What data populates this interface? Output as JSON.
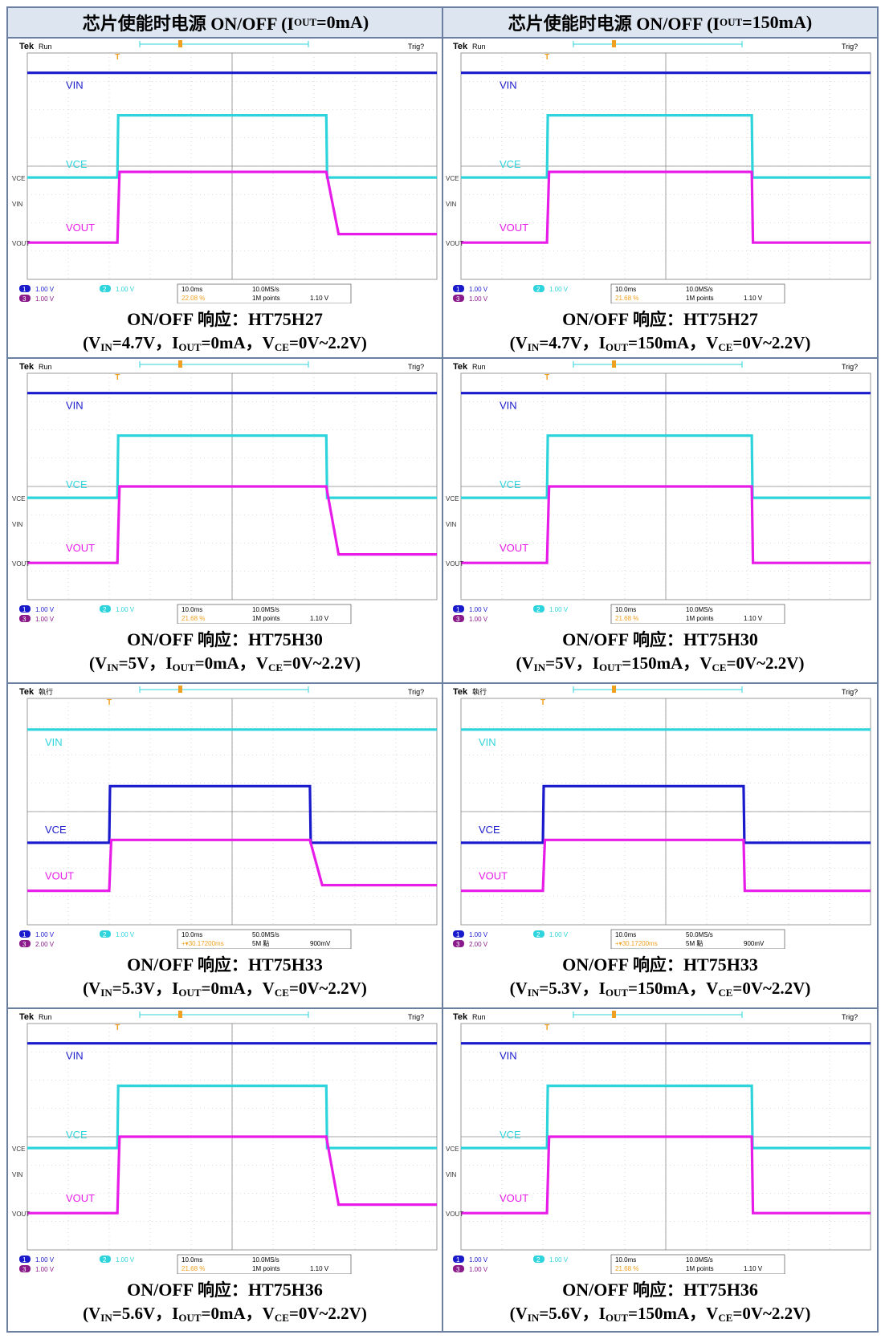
{
  "headers": [
    {
      "pre": "芯片使能时电源 ON/OFF (I",
      "sub": "OUT",
      "post": "=0mA)"
    },
    {
      "pre": "芯片使能时电源 ON/OFF (I",
      "sub": "OUT",
      "post": "=150mA)"
    }
  ],
  "colors": {
    "vin_blue": "#1a1acd",
    "vce_cyan": "#2ed4dc",
    "vout_magenta": "#e81ce8",
    "frame": "#6b7fa0",
    "header_bg": "#dde5f1"
  },
  "panels": [
    {
      "id": "h27-0",
      "title_prefix": "ON/OFF ",
      "title_cn": "响应：",
      "title_part": "HT75H27",
      "vin": "4.7V",
      "iout": "0mA",
      "vce": "0V~2.2V",
      "run_label": "Run",
      "trig_label": "Trig?",
      "ch1": "1.00 V",
      "ch2": "1.00 V",
      "ch3": "1.00 V",
      "timebase": "10.0ms",
      "rate": "10.0MS/s",
      "points": "1M points",
      "trigpos": "22.08 %",
      "triglevel": "1.10 V"
    },
    {
      "id": "h27-150",
      "title_prefix": "ON/OFF ",
      "title_cn": "响应：",
      "title_part": "HT75H27",
      "vin": "4.7V",
      "iout": "150mA",
      "vce": "0V~2.2V",
      "run_label": "Run",
      "trig_label": "Trig?",
      "ch1": "1.00 V",
      "ch2": "1.00 V",
      "ch3": "1.00 V",
      "timebase": "10.0ms",
      "rate": "10.0MS/s",
      "points": "1M points",
      "trigpos": "21.68 %",
      "triglevel": "1.10 V"
    },
    {
      "id": "h30-0",
      "title_prefix": "ON/OFF ",
      "title_cn": "响应：",
      "title_part": "HT75H30",
      "vin": "5V",
      "iout": "0mA",
      "vce": "0V~2.2V",
      "run_label": "Run",
      "trig_label": "Trig?",
      "ch1": "1.00 V",
      "ch2": "1.00 V",
      "ch3": "1.00 V",
      "timebase": "10.0ms",
      "rate": "10.0MS/s",
      "points": "1M points",
      "trigpos": "21.68 %",
      "triglevel": "1.10 V"
    },
    {
      "id": "h30-150",
      "title_prefix": "ON/OFF ",
      "title_cn": "响应：",
      "title_part": "HT75H30",
      "vin": "5V",
      "iout": "150mA",
      "vce": "0V~2.2V",
      "run_label": "Run",
      "trig_label": "Trig?",
      "ch1": "1.00 V",
      "ch2": "1.00 V",
      "ch3": "1.00 V",
      "timebase": "10.0ms",
      "rate": "10.0MS/s",
      "points": "1M points",
      "trigpos": "21.68 %",
      "triglevel": "1.10 V"
    },
    {
      "id": "h33-0",
      "title_prefix": "ON/OFF ",
      "title_cn": "响应：",
      "title_part": "HT75H33",
      "vin": "5.3V",
      "iout": "0mA",
      "vce": "0V~2.2V",
      "run_label": "執行",
      "trig_label": "Trig?",
      "ch1": "1.00 V",
      "ch2": "1.00 V",
      "ch3": "2.00 V",
      "timebase": "10.0ms",
      "rate": "50.0MS/s",
      "points": "5M 點",
      "trigpos": "+▾30.17200ms",
      "triglevel": "900mV"
    },
    {
      "id": "h33-150",
      "title_prefix": "ON/OFF ",
      "title_cn": "响应：",
      "title_part": "HT75H33",
      "vin": "5.3V",
      "iout": "150mA",
      "vce": "0V~2.2V",
      "run_label": "執行",
      "trig_label": "Trig?",
      "ch1": "1.00 V",
      "ch2": "1.00 V",
      "ch3": "2.00 V",
      "timebase": "10.0ms",
      "rate": "50.0MS/s",
      "points": "5M 點",
      "trigpos": "+▾30.17200ms",
      "triglevel": "900mV"
    },
    {
      "id": "h36-0",
      "title_prefix": "ON/OFF ",
      "title_cn": "响应：",
      "title_part": "HT75H36",
      "vin": "5.6V",
      "iout": "0mA",
      "vce": "0V~2.2V",
      "run_label": "Run",
      "trig_label": "Trig?",
      "ch1": "1.00 V",
      "ch2": "1.00 V",
      "ch3": "1.00 V",
      "timebase": "10.0ms",
      "rate": "10.0MS/s",
      "points": "1M points",
      "trigpos": "21.68 %",
      "triglevel": "1.10 V"
    },
    {
      "id": "h36-150",
      "title_prefix": "ON/OFF ",
      "title_cn": "响应：",
      "title_part": "HT75H36",
      "vin": "5.6V",
      "iout": "150mA",
      "vce": "0V~2.2V",
      "run_label": "Run",
      "trig_label": "Trig?",
      "ch1": "1.00 V",
      "ch2": "1.00 V",
      "ch3": "1.00 V",
      "timebase": "10.0ms",
      "rate": "10.0MS/s",
      "points": "1M points",
      "trigpos": "21.68 %",
      "triglevel": "1.10 V"
    }
  ],
  "chart_data": [
    {
      "type": "line",
      "id": "h27-0",
      "x_unit": "div",
      "x_range": [
        0,
        10
      ],
      "y_unit": "div",
      "y_range": [
        -4,
        4
      ],
      "grid": true,
      "series": [
        {
          "name": "VIN",
          "color": "#1a1acd",
          "points": [
            [
              0,
              3.3
            ],
            [
              10,
              3.3
            ]
          ]
        },
        {
          "name": "VCE",
          "color": "#2ed4dc",
          "points": [
            [
              0,
              -0.4
            ],
            [
              2.2,
              -0.4
            ],
            [
              2.22,
              1.8
            ],
            [
              7.3,
              1.8
            ],
            [
              7.32,
              -0.4
            ],
            [
              10,
              -0.4
            ]
          ]
        },
        {
          "name": "VOUT",
          "color": "#e81ce8",
          "points": [
            [
              0,
              -2.7
            ],
            [
              2.2,
              -2.7
            ],
            [
              2.25,
              -0.2
            ],
            [
              7.3,
              -0.2
            ],
            [
              7.6,
              -2.4
            ],
            [
              10,
              -2.4
            ]
          ]
        }
      ],
      "labels": [
        "VIN",
        "VCE",
        "VOUT"
      ],
      "markers": [
        "VCE",
        "VIN",
        "VOUT"
      ]
    },
    {
      "type": "line",
      "id": "h27-150",
      "x_unit": "div",
      "x_range": [
        0,
        10
      ],
      "y_unit": "div",
      "y_range": [
        -4,
        4
      ],
      "grid": true,
      "series": [
        {
          "name": "VIN",
          "color": "#1a1acd",
          "points": [
            [
              0,
              3.3
            ],
            [
              10,
              3.3
            ]
          ]
        },
        {
          "name": "VCE",
          "color": "#2ed4dc",
          "points": [
            [
              0,
              -0.4
            ],
            [
              2.1,
              -0.4
            ],
            [
              2.12,
              1.8
            ],
            [
              7.1,
              1.8
            ],
            [
              7.12,
              -0.4
            ],
            [
              10,
              -0.4
            ]
          ]
        },
        {
          "name": "VOUT",
          "color": "#e81ce8",
          "points": [
            [
              0,
              -2.7
            ],
            [
              2.1,
              -2.7
            ],
            [
              2.15,
              -0.2
            ],
            [
              7.1,
              -0.2
            ],
            [
              7.13,
              -2.7
            ],
            [
              10,
              -2.7
            ]
          ]
        }
      ],
      "labels": [
        "VIN",
        "VCE",
        "VOUT"
      ],
      "markers": [
        "VCE",
        "VIN",
        "VOUT"
      ]
    },
    {
      "type": "line",
      "id": "h30-0",
      "x_unit": "div",
      "x_range": [
        0,
        10
      ],
      "y_unit": "div",
      "y_range": [
        -4,
        4
      ],
      "grid": true,
      "series": [
        {
          "name": "VIN",
          "color": "#1a1acd",
          "points": [
            [
              0,
              3.3
            ],
            [
              10,
              3.3
            ]
          ]
        },
        {
          "name": "VCE",
          "color": "#2ed4dc",
          "points": [
            [
              0,
              -0.4
            ],
            [
              2.2,
              -0.4
            ],
            [
              2.22,
              1.8
            ],
            [
              7.3,
              1.8
            ],
            [
              7.32,
              -0.4
            ],
            [
              10,
              -0.4
            ]
          ]
        },
        {
          "name": "VOUT",
          "color": "#e81ce8",
          "points": [
            [
              0,
              -2.7
            ],
            [
              2.2,
              -2.7
            ],
            [
              2.25,
              0.0
            ],
            [
              7.3,
              0.0
            ],
            [
              7.6,
              -2.4
            ],
            [
              10,
              -2.4
            ]
          ]
        }
      ],
      "labels": [
        "VIN",
        "VCE",
        "VOUT"
      ],
      "markers": [
        "VCE",
        "VIN",
        "VOUT"
      ]
    },
    {
      "type": "line",
      "id": "h30-150",
      "x_unit": "div",
      "x_range": [
        0,
        10
      ],
      "y_unit": "div",
      "y_range": [
        -4,
        4
      ],
      "grid": true,
      "series": [
        {
          "name": "VIN",
          "color": "#1a1acd",
          "points": [
            [
              0,
              3.3
            ],
            [
              10,
              3.3
            ]
          ]
        },
        {
          "name": "VCE",
          "color": "#2ed4dc",
          "points": [
            [
              0,
              -0.4
            ],
            [
              2.1,
              -0.4
            ],
            [
              2.12,
              1.8
            ],
            [
              7.1,
              1.8
            ],
            [
              7.12,
              -0.4
            ],
            [
              10,
              -0.4
            ]
          ]
        },
        {
          "name": "VOUT",
          "color": "#e81ce8",
          "points": [
            [
              0,
              -2.7
            ],
            [
              2.1,
              -2.7
            ],
            [
              2.15,
              0.0
            ],
            [
              7.1,
              0.0
            ],
            [
              7.13,
              -2.7
            ],
            [
              10,
              -2.7
            ]
          ]
        }
      ],
      "labels": [
        "VIN",
        "VCE",
        "VOUT"
      ],
      "markers": [
        "VCE",
        "VIN",
        "VOUT"
      ]
    },
    {
      "type": "line",
      "id": "h33-0",
      "x_unit": "div",
      "x_range": [
        0,
        10
      ],
      "y_unit": "div",
      "y_range": [
        -4,
        4
      ],
      "grid": true,
      "series": [
        {
          "name": "VIN",
          "color": "#2ed4dc",
          "points": [
            [
              0,
              2.9
            ],
            [
              10,
              2.9
            ]
          ]
        },
        {
          "name": "VCE",
          "color": "#1a1acd",
          "points": [
            [
              0,
              -1.1
            ],
            [
              2.0,
              -1.1
            ],
            [
              2.02,
              0.9
            ],
            [
              6.9,
              0.9
            ],
            [
              6.92,
              -1.1
            ],
            [
              10,
              -1.1
            ]
          ]
        },
        {
          "name": "VOUT",
          "color": "#e81ce8",
          "points": [
            [
              0,
              -2.8
            ],
            [
              2.0,
              -2.8
            ],
            [
              2.05,
              -1.0
            ],
            [
              6.9,
              -1.0
            ],
            [
              7.2,
              -2.6
            ],
            [
              10,
              -2.6
            ]
          ]
        }
      ],
      "labels": [
        "VIN",
        "VCE",
        "VOUT"
      ],
      "markers": [
        "",
        "",
        ""
      ]
    },
    {
      "type": "line",
      "id": "h33-150",
      "x_unit": "div",
      "x_range": [
        0,
        10
      ],
      "y_unit": "div",
      "y_range": [
        -4,
        4
      ],
      "grid": true,
      "series": [
        {
          "name": "VIN",
          "color": "#2ed4dc",
          "points": [
            [
              0,
              2.9
            ],
            [
              10,
              2.9
            ]
          ]
        },
        {
          "name": "VCE",
          "color": "#1a1acd",
          "points": [
            [
              0,
              -1.1
            ],
            [
              2.0,
              -1.1
            ],
            [
              2.02,
              0.9
            ],
            [
              6.9,
              0.9
            ],
            [
              6.92,
              -1.1
            ],
            [
              10,
              -1.1
            ]
          ]
        },
        {
          "name": "VOUT",
          "color": "#e81ce8",
          "points": [
            [
              0,
              -2.8
            ],
            [
              2.0,
              -2.8
            ],
            [
              2.05,
              -1.0
            ],
            [
              6.9,
              -1.0
            ],
            [
              6.93,
              -2.8
            ],
            [
              10,
              -2.8
            ]
          ]
        }
      ],
      "labels": [
        "VIN",
        "VCE",
        "VOUT"
      ],
      "markers": [
        "",
        "",
        ""
      ]
    },
    {
      "type": "line",
      "id": "h36-0",
      "x_unit": "div",
      "x_range": [
        0,
        10
      ],
      "y_unit": "div",
      "y_range": [
        -4,
        4
      ],
      "grid": true,
      "series": [
        {
          "name": "VIN",
          "color": "#1a1acd",
          "points": [
            [
              0,
              3.3
            ],
            [
              10,
              3.3
            ]
          ]
        },
        {
          "name": "VCE",
          "color": "#2ed4dc",
          "points": [
            [
              0,
              -0.4
            ],
            [
              2.2,
              -0.4
            ],
            [
              2.22,
              1.8
            ],
            [
              7.3,
              1.8
            ],
            [
              7.32,
              -0.4
            ],
            [
              10,
              -0.4
            ]
          ]
        },
        {
          "name": "VOUT",
          "color": "#e81ce8",
          "points": [
            [
              0,
              -2.7
            ],
            [
              2.2,
              -2.7
            ],
            [
              2.25,
              0.0
            ],
            [
              7.3,
              0.0
            ],
            [
              7.6,
              -2.4
            ],
            [
              10,
              -2.4
            ]
          ]
        }
      ],
      "labels": [
        "VIN",
        "VCE",
        "VOUT"
      ],
      "markers": [
        "VCE",
        "VIN",
        "VOUT"
      ]
    },
    {
      "type": "line",
      "id": "h36-150",
      "x_unit": "div",
      "x_range": [
        0,
        10
      ],
      "y_unit": "div",
      "y_range": [
        -4,
        4
      ],
      "grid": true,
      "series": [
        {
          "name": "VIN",
          "color": "#1a1acd",
          "points": [
            [
              0,
              3.3
            ],
            [
              10,
              3.3
            ]
          ]
        },
        {
          "name": "VCE",
          "color": "#2ed4dc",
          "points": [
            [
              0,
              -0.4
            ],
            [
              2.1,
              -0.4
            ],
            [
              2.12,
              1.8
            ],
            [
              7.1,
              1.8
            ],
            [
              7.12,
              -0.4
            ],
            [
              10,
              -0.4
            ]
          ]
        },
        {
          "name": "VOUT",
          "color": "#e81ce8",
          "points": [
            [
              0,
              -2.7
            ],
            [
              2.1,
              -2.7
            ],
            [
              2.15,
              0.0
            ],
            [
              7.1,
              0.0
            ],
            [
              7.13,
              -2.7
            ],
            [
              10,
              -2.7
            ]
          ]
        }
      ],
      "labels": [
        "VIN",
        "VCE",
        "VOUT"
      ],
      "markers": [
        "VCE",
        "VIN",
        "VOUT"
      ]
    }
  ]
}
